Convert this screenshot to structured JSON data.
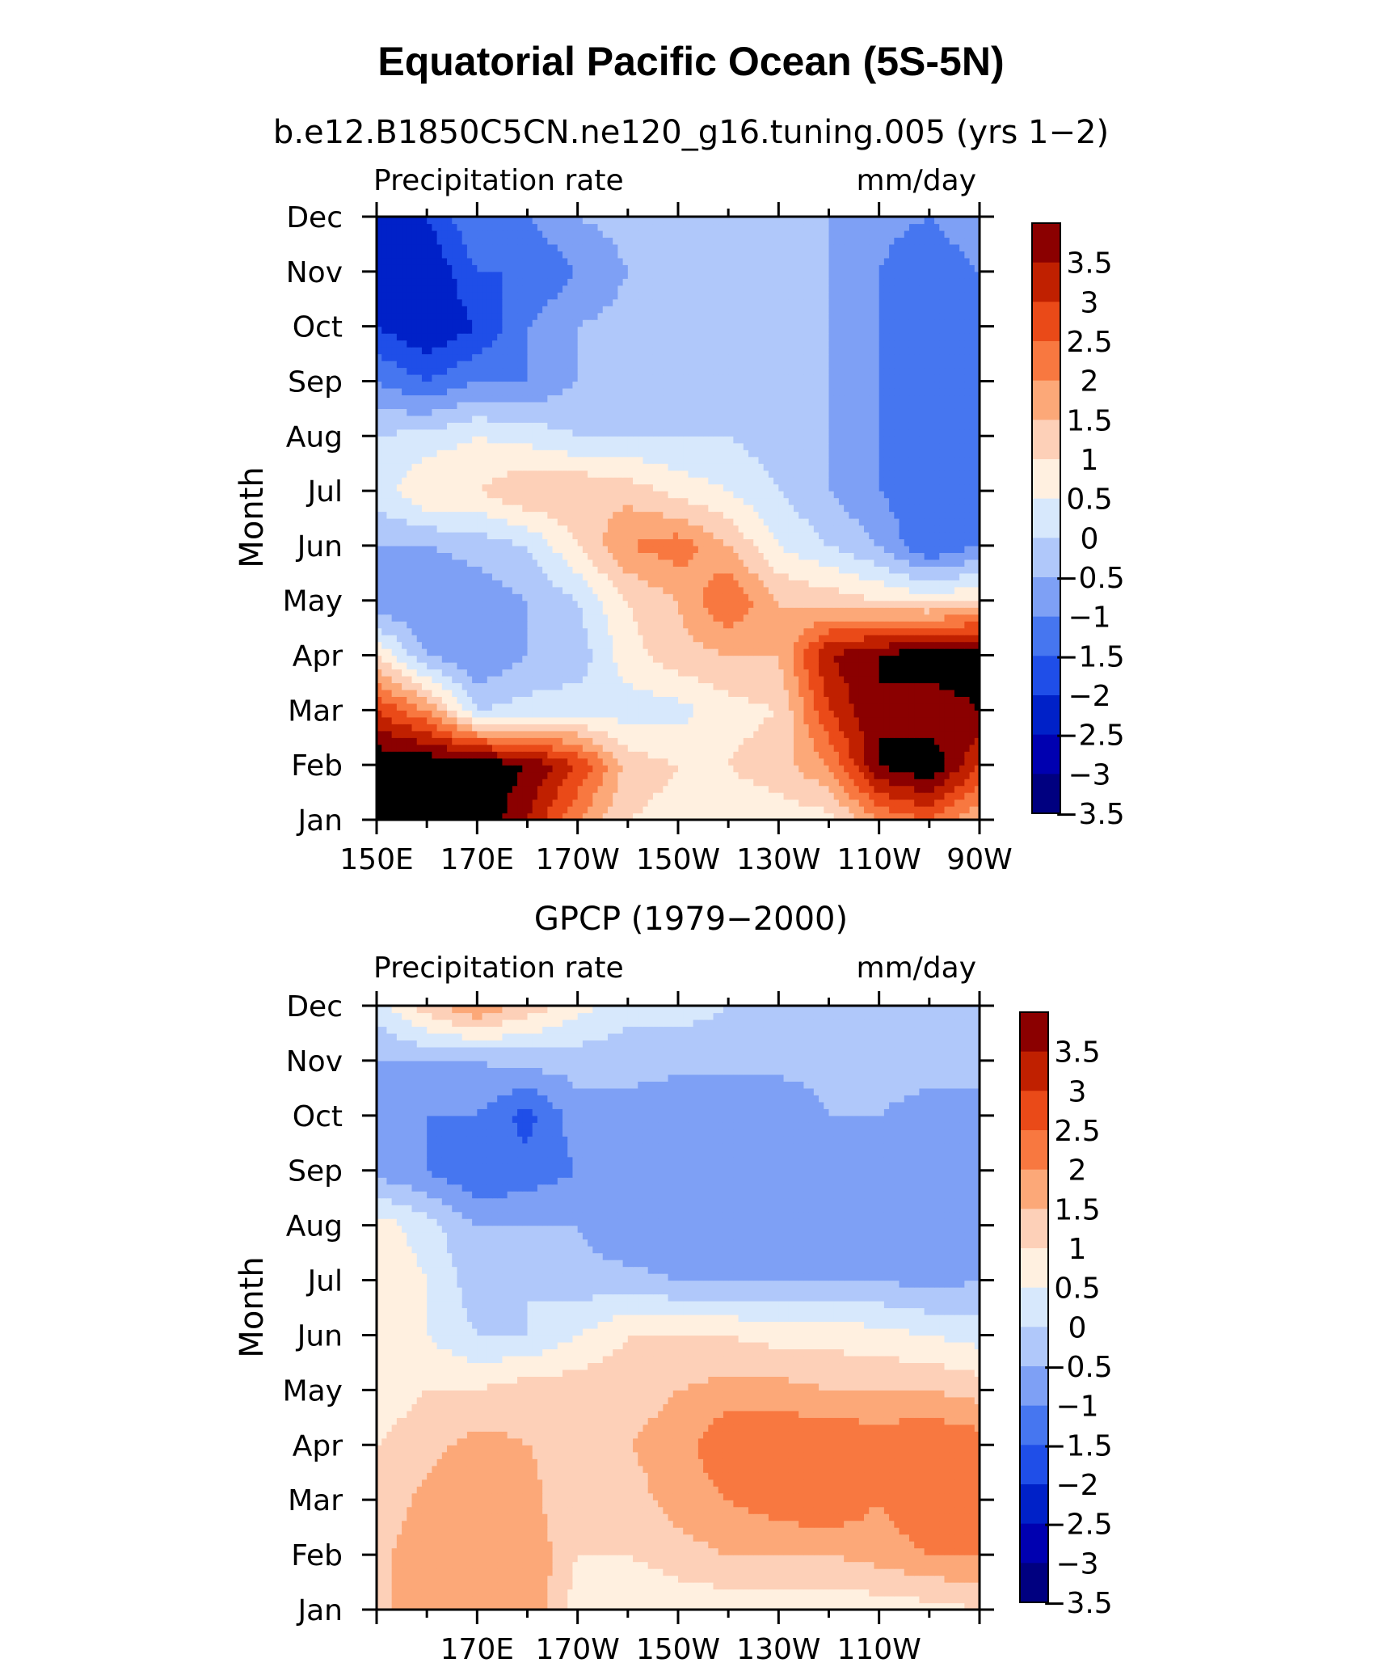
{
  "figure": {
    "title": "Equatorial Pacific Ocean (5S-5N)"
  },
  "colors": {
    "palette": [
      "#000080",
      "#0000b0",
      "#0021c8",
      "#1f4ee8",
      "#4676f0",
      "#7ea0f5",
      "#b0c8fa",
      "#d7e8fc",
      "#fff0e0",
      "#fdd0b8",
      "#fca878",
      "#f87840",
      "#ea4a18",
      "#c02000",
      "#8b0000"
    ],
    "levels": [
      -3.5,
      -3,
      -2.5,
      -2,
      -1.5,
      -1,
      -0.5,
      0,
      0.5,
      1,
      1.5,
      2,
      2.5,
      3,
      3.5
    ]
  },
  "chart_data": [
    {
      "type": "heatmap",
      "title": "b.e12.B1850C5CN.ne120_g16.tuning.005 (yrs 1−2)",
      "left_label": "Precipitation rate",
      "right_label": "mm/day",
      "ylabel": "Month",
      "xlabel": "",
      "x_tick_labels": [
        "150E",
        "170E",
        "170W",
        "150W",
        "130W",
        "110W",
        "90W"
      ],
      "x_tick_lons": [
        150,
        170,
        190,
        210,
        230,
        250,
        270
      ],
      "xlim": [
        150,
        270
      ],
      "y_tick_labels": [
        "Jan",
        "Feb",
        "Mar",
        "Apr",
        "May",
        "Jun",
        "Jul",
        "Aug",
        "Sep",
        "Oct",
        "Nov",
        "Dec"
      ],
      "colorbar_labels": [
        "3.5",
        "3",
        "2.5",
        "2",
        "1.5",
        "1",
        "0.5",
        "0",
        "−0.5",
        "−1",
        "−1.5",
        "−2",
        "−2.5",
        "−3",
        "−3.5"
      ],
      "units": "mm/day",
      "lons": [
        150,
        160,
        170,
        180,
        190,
        200,
        210,
        220,
        230,
        240,
        250,
        260,
        270
      ],
      "months": [
        "Jan",
        "Feb",
        "Mar",
        "Apr",
        "May",
        "Jun",
        "Jul",
        "Aug",
        "Sep",
        "Oct",
        "Nov",
        "Dec"
      ],
      "values": [
        [
          4.0,
          4.0,
          4.0,
          3.0,
          1.5,
          0.5,
          0.3,
          0.2,
          0.2,
          0.3,
          1.5,
          2.0,
          1.0
        ],
        [
          4.0,
          4.0,
          4.0,
          3.5,
          2.5,
          0.8,
          0.5,
          0.5,
          0.8,
          1.5,
          3.5,
          4.0,
          2.5
        ],
        [
          2.5,
          1.5,
          -0.5,
          -0.3,
          -0.2,
          -0.3,
          -0.2,
          0.3,
          0.5,
          2.5,
          3.5,
          3.0,
          3.5
        ],
        [
          0.5,
          -1.0,
          -1.5,
          -1.0,
          -0.8,
          0.3,
          0.8,
          1.0,
          1.0,
          3.0,
          3.5,
          4.0,
          4.0
        ],
        [
          -1.5,
          -1.5,
          -1.3,
          -1.0,
          -0.5,
          0.5,
          1.0,
          2.0,
          1.0,
          0.8,
          0.5,
          0.3,
          0.5
        ],
        [
          -1.0,
          -1.0,
          -0.8,
          -0.5,
          0.5,
          1.5,
          1.8,
          1.0,
          0.0,
          -0.5,
          -1.0,
          -2.0,
          -1.5
        ],
        [
          -0.3,
          0.5,
          0.5,
          1.0,
          1.0,
          0.8,
          0.3,
          0.0,
          -0.5,
          -1.0,
          -1.5,
          -2.0,
          -1.5
        ],
        [
          -0.5,
          -0.3,
          0.0,
          -0.2,
          -0.5,
          -0.5,
          -0.5,
          -0.5,
          -0.8,
          -1.0,
          -1.5,
          -2.0,
          -1.5
        ],
        [
          -1.5,
          -2.0,
          -1.5,
          -1.5,
          -1.0,
          -1.0,
          -0.8,
          -1.0,
          -1.0,
          -1.0,
          -1.5,
          -2.0,
          -1.5
        ],
        [
          -2.5,
          -3.0,
          -2.5,
          -1.5,
          -1.0,
          -0.8,
          -0.8,
          -1.0,
          -1.0,
          -1.0,
          -1.5,
          -2.0,
          -1.5
        ],
        [
          -2.5,
          -3.0,
          -2.0,
          -2.0,
          -1.5,
          -1.0,
          -0.8,
          -1.0,
          -1.0,
          -1.0,
          -1.5,
          -2.0,
          -1.5
        ],
        [
          -3.0,
          -2.5,
          -1.5,
          -1.5,
          -1.0,
          -0.8,
          -0.8,
          -1.0,
          -1.0,
          -1.0,
          -1.3,
          -1.5,
          -1.0
        ]
      ]
    },
    {
      "type": "heatmap",
      "title": "GPCP (1979−2000)",
      "left_label": "Precipitation rate",
      "right_label": "mm/day",
      "ylabel": "Month",
      "xlabel": "",
      "x_tick_labels": [
        "170E",
        "170W",
        "150W",
        "130W",
        "110W"
      ],
      "x_tick_lons": [
        170,
        190,
        210,
        230,
        250
      ],
      "xlim": [
        150,
        270
      ],
      "y_tick_labels": [
        "Jan",
        "Feb",
        "Mar",
        "Apr",
        "May",
        "Jun",
        "Jul",
        "Aug",
        "Sep",
        "Oct",
        "Nov",
        "Dec"
      ],
      "colorbar_labels": [
        "3.5",
        "3",
        "2.5",
        "2",
        "1.5",
        "1",
        "0.5",
        "0",
        "−0.5",
        "−1",
        "−1.5",
        "−2",
        "−2.5",
        "−3",
        "−3.5"
      ],
      "units": "mm/day",
      "lons": [
        150,
        160,
        170,
        180,
        190,
        200,
        210,
        220,
        230,
        240,
        250,
        260,
        270
      ],
      "months": [
        "Jan",
        "Feb",
        "Mar",
        "Apr",
        "May",
        "Jun",
        "Jul",
        "Aug",
        "Sep",
        "Oct",
        "Nov",
        "Dec"
      ],
      "values": [
        [
          0.8,
          1.5,
          1.2,
          1.5,
          0.2,
          0.0,
          0.1,
          0.2,
          0.2,
          0.2,
          0.2,
          0.3,
          0.5
        ],
        [
          0.8,
          1.5,
          1.0,
          1.5,
          0.5,
          0.5,
          0.8,
          1.0,
          1.0,
          1.0,
          1.2,
          1.5,
          1.5
        ],
        [
          0.5,
          1.2,
          1.5,
          1.2,
          0.5,
          0.8,
          1.2,
          1.5,
          1.8,
          2.0,
          1.5,
          2.0,
          1.5
        ],
        [
          0.5,
          0.8,
          1.2,
          1.0,
          0.8,
          1.0,
          1.2,
          2.0,
          2.0,
          2.0,
          1.8,
          2.0,
          1.8
        ],
        [
          0.2,
          0.5,
          0.5,
          0.8,
          0.8,
          0.8,
          1.0,
          1.2,
          1.2,
          1.0,
          1.0,
          1.0,
          0.8
        ],
        [
          0.5,
          0.0,
          -0.5,
          -0.5,
          0.0,
          0.5,
          0.5,
          0.5,
          0.3,
          0.3,
          0.2,
          0.0,
          -0.2
        ],
        [
          0.5,
          0.0,
          -0.8,
          -0.5,
          -0.8,
          -0.8,
          -1.0,
          -1.0,
          -1.0,
          -1.0,
          -1.0,
          -1.2,
          -1.0
        ],
        [
          0.3,
          -0.3,
          -1.0,
          -1.0,
          -1.0,
          -1.5,
          -1.5,
          -1.5,
          -1.5,
          -1.3,
          -1.0,
          -1.5,
          -1.3
        ],
        [
          -1.2,
          -1.5,
          -2.0,
          -1.8,
          -1.5,
          -1.5,
          -1.5,
          -1.5,
          -1.5,
          -1.5,
          -1.0,
          -1.3,
          -1.3
        ],
        [
          -1.3,
          -1.5,
          -1.5,
          -2.2,
          -1.2,
          -1.2,
          -1.5,
          -1.5,
          -1.5,
          -1.0,
          -1.0,
          -1.2,
          -1.2
        ],
        [
          -1.0,
          -1.0,
          -1.0,
          -0.8,
          -0.8,
          -0.8,
          -0.8,
          -0.8,
          -0.8,
          -0.8,
          -0.8,
          -0.8,
          -0.8
        ],
        [
          -0.3,
          0.8,
          1.5,
          0.8,
          0.2,
          -0.3,
          -0.3,
          -0.5,
          -0.5,
          -0.5,
          -0.5,
          -0.5,
          -0.5
        ]
      ]
    }
  ]
}
